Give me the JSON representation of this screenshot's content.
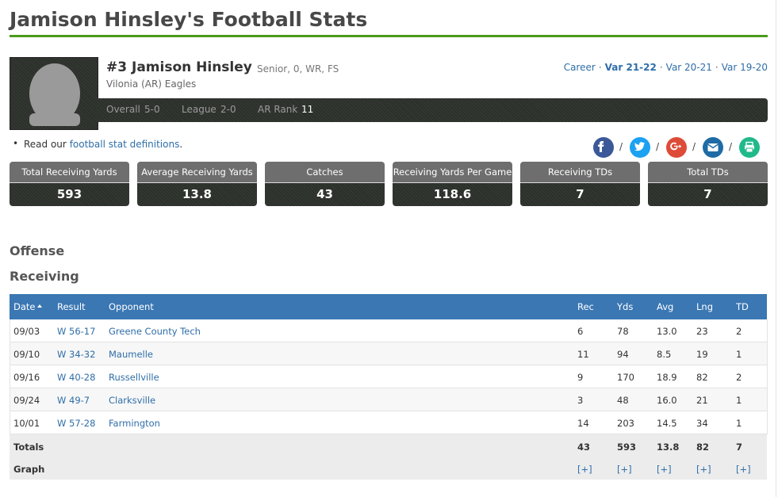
{
  "header": {
    "title": "Jamison Hinsley's Football Stats"
  },
  "player": {
    "name": "#3 Jamison Hinsley",
    "details": "Senior, 0, WR, FS",
    "team": "Vilonia (AR) Eagles",
    "record": [
      {
        "label": "Overall",
        "value": "5-0"
      },
      {
        "label": "League",
        "value": "2-0"
      },
      {
        "label": "AR Rank",
        "value": "11"
      }
    ]
  },
  "seasons": {
    "items": [
      "Career",
      "Var 21-22",
      "Var 20-21",
      "Var 19-20"
    ],
    "active": 1,
    "separator": "·"
  },
  "note": {
    "prefix": "Read our",
    "link": "football stat definitions",
    "suffix": "."
  },
  "share": {
    "separator": "/"
  },
  "summary": [
    {
      "label": "Total Receiving Yards",
      "value": "593"
    },
    {
      "label": "Average Receiving Yards",
      "value": "13.8"
    },
    {
      "label": "Catches",
      "value": "43"
    },
    {
      "label": "Receiving Yards Per Game",
      "value": "118.6"
    },
    {
      "label": "Receiving TDs",
      "value": "7"
    },
    {
      "label": "Total TDs",
      "value": "7"
    }
  ],
  "sections": {
    "offense": "Offense",
    "receiving": "Receiving"
  },
  "table": {
    "columns": [
      "Date",
      "Result",
      "Opponent",
      "Rec",
      "Yds",
      "Avg",
      "Lng",
      "TD"
    ],
    "rows": [
      [
        "09/03",
        "W 56-17",
        "Greene County Tech",
        "6",
        "78",
        "13.0",
        "23",
        "2"
      ],
      [
        "09/10",
        "W 34-32",
        "Maumelle",
        "11",
        "94",
        "8.5",
        "19",
        "1"
      ],
      [
        "09/16",
        "W 40-28",
        "Russellville",
        "9",
        "170",
        "18.9",
        "82",
        "2"
      ],
      [
        "09/24",
        "W 49-7",
        "Clarksville",
        "3",
        "48",
        "16.0",
        "21",
        "1"
      ],
      [
        "10/01",
        "W 57-28",
        "Farmington",
        "14",
        "203",
        "14.5",
        "34",
        "1"
      ]
    ],
    "totals": {
      "label": "Totals",
      "values": [
        "43",
        "593",
        "13.8",
        "82",
        "7"
      ]
    },
    "graph": {
      "label": "Graph",
      "links": [
        "[+]",
        "[+]",
        "[+]",
        "[+]",
        "[+]"
      ]
    }
  }
}
